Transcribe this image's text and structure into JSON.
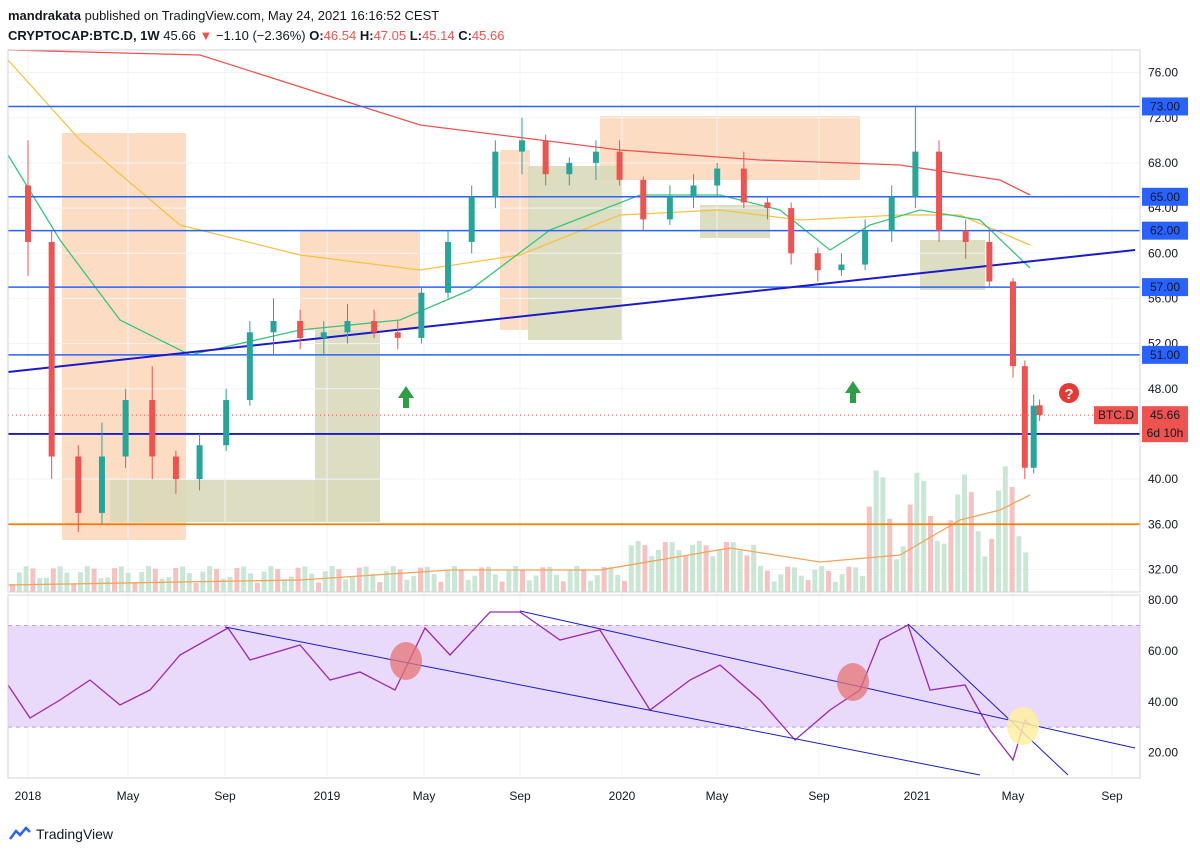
{
  "header": {
    "publisher": "mandrakata",
    "published_text": "published on TradingView.com, May 24, 2021 16:16:52 CEST",
    "symbol": "CRYPTOCAP:BTC.D, 1W",
    "last": "45.66",
    "change_arrow": "▼",
    "change": "−1.10 (−2.36%)",
    "o_label": "O:",
    "o": "46.54",
    "h_label": "H:",
    "h": "47.05",
    "l_label": "L:",
    "l": "45.14",
    "c_label": "C:",
    "c": "45.66"
  },
  "footer": {
    "logo_text": "TradingView"
  },
  "colors": {
    "level_line": "#2962ff",
    "trendline": "#1a1acc",
    "support": "#f57c00",
    "up_candle": "#26a69a",
    "down_candle": "#ef5350",
    "ma_slow": "#ef5350",
    "ma_mid": "#f5c242",
    "ma_fast": "#3ac47d",
    "rsi": "#9c27b0",
    "rsi_band": "#e9d9fa",
    "zone_peach": "#fbd4b4",
    "zone_olive": "#d9d9bb"
  },
  "chart_data": {
    "type": "candlestick",
    "symbol": "BTC.D",
    "timeframe": "1W",
    "x_tick_labels": [
      "2018",
      "May",
      "Sep",
      "2019",
      "May",
      "Sep",
      "2020",
      "May",
      "Sep",
      "2021",
      "May",
      "Sep"
    ],
    "y_tick_labels": [
      "76.00",
      "72.00",
      "68.00",
      "64.00",
      "60.00",
      "56.00",
      "52.00",
      "48.00",
      "44.00",
      "40.00",
      "36.00",
      "32.00"
    ],
    "ylim": [
      30,
      78
    ],
    "horizontal_levels": [
      {
        "label": "73.00",
        "value": 73
      },
      {
        "label": "65.00",
        "value": 65
      },
      {
        "label": "62.00",
        "value": 62
      },
      {
        "label": "57.00",
        "value": 57
      },
      {
        "label": "51.00",
        "value": 51
      }
    ],
    "support_levels": [
      44,
      36
    ],
    "current_price": {
      "label": "BTC.D",
      "value": "45.66",
      "countdown": "6d 10h"
    },
    "candles": [
      [
        2018.0,
        66,
        70,
        58,
        61
      ],
      [
        2018.08,
        61,
        62,
        40,
        42
      ],
      [
        2018.17,
        42,
        43,
        35.3,
        37
      ],
      [
        2018.25,
        37,
        45,
        36,
        42
      ],
      [
        2018.33,
        42,
        48,
        41,
        47
      ],
      [
        2018.42,
        47,
        50,
        40,
        42
      ],
      [
        2018.5,
        42,
        42.5,
        38.7,
        40
      ],
      [
        2018.58,
        40,
        44,
        39,
        43
      ],
      [
        2018.67,
        43,
        48,
        42.5,
        47
      ],
      [
        2018.75,
        47,
        54,
        46.5,
        53
      ],
      [
        2018.83,
        53,
        56,
        51,
        54
      ],
      [
        2018.92,
        54,
        55,
        51.5,
        52.5
      ],
      [
        2019.0,
        52.5,
        54,
        51,
        53
      ],
      [
        2019.08,
        53,
        55.5,
        52,
        54
      ],
      [
        2019.17,
        54,
        55,
        52.5,
        53
      ],
      [
        2019.25,
        53,
        54,
        51.5,
        52.5
      ],
      [
        2019.33,
        52.5,
        57,
        52,
        56.5
      ],
      [
        2019.42,
        56.5,
        62,
        56,
        61
      ],
      [
        2019.5,
        61,
        66,
        60,
        65
      ],
      [
        2019.58,
        65,
        70,
        64,
        69
      ],
      [
        2019.67,
        69,
        72,
        67,
        70
      ],
      [
        2019.75,
        70,
        70.5,
        66,
        67
      ],
      [
        2019.83,
        67,
        68.5,
        66,
        68
      ],
      [
        2019.92,
        68,
        70,
        66.5,
        69
      ],
      [
        2020.0,
        69,
        70,
        66,
        66.5
      ],
      [
        2020.08,
        66.5,
        66.8,
        62,
        63
      ],
      [
        2020.17,
        63,
        66,
        62.5,
        65
      ],
      [
        2020.25,
        65,
        67,
        64,
        66
      ],
      [
        2020.33,
        66,
        68,
        65,
        67.5
      ],
      [
        2020.42,
        67.5,
        69,
        64,
        64.5
      ],
      [
        2020.5,
        64.5,
        65,
        63,
        64
      ],
      [
        2020.58,
        64,
        64.5,
        59,
        60
      ],
      [
        2020.67,
        60,
        60.5,
        57.5,
        58.5
      ],
      [
        2020.75,
        58.5,
        60,
        58,
        59
      ],
      [
        2020.83,
        59,
        63,
        58.5,
        62
      ],
      [
        2020.92,
        62,
        66,
        61,
        65
      ],
      [
        2021.0,
        65,
        73,
        64,
        69
      ],
      [
        2021.08,
        69,
        70,
        61,
        62
      ],
      [
        2021.17,
        62,
        63,
        59.5,
        61
      ],
      [
        2021.25,
        61,
        62,
        57,
        57.5
      ],
      [
        2021.33,
        57.5,
        57.8,
        49,
        50
      ],
      [
        2021.37,
        50,
        50.5,
        40,
        41
      ],
      [
        2021.4,
        41,
        47.5,
        40.5,
        46.5
      ],
      [
        2021.42,
        46.54,
        47.05,
        45.14,
        45.66
      ]
    ],
    "rsi": {
      "ylim": [
        10,
        82
      ],
      "y_tick_labels": [
        "80.00",
        "60.00",
        "40.00",
        "20.00"
      ],
      "band": [
        30,
        70
      ]
    },
    "annotations": [
      "up-arrow",
      "up-arrow",
      "question-mark"
    ]
  }
}
